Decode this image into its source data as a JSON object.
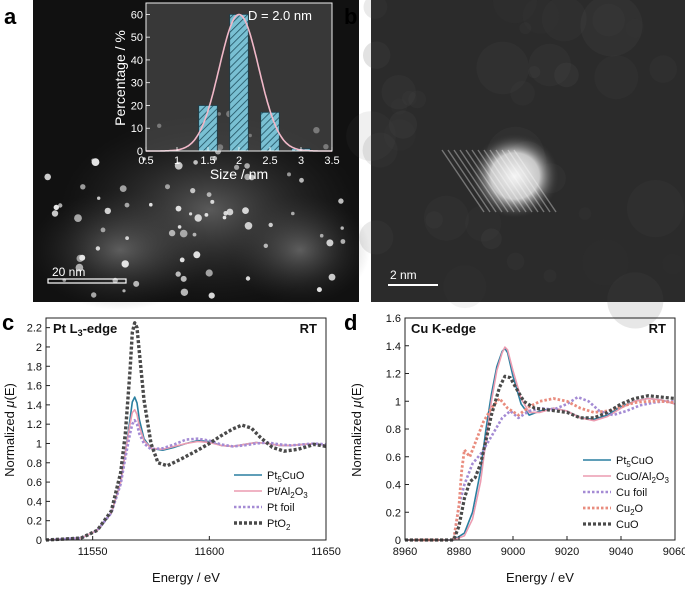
{
  "panel_labels": {
    "a": "a",
    "b": "b",
    "c": "c",
    "d": "d"
  },
  "panel_a": {
    "scale_bar": "20 nm",
    "inset": {
      "annotation": "D = 2.0 nm",
      "xlabel": "Size / nm",
      "ylabel": "Percentage / %",
      "xticks": [
        "0.5",
        "1",
        "1.5",
        "2",
        "2.5",
        "3",
        "3.5"
      ],
      "yticks": [
        "0",
        "10",
        "20",
        "30",
        "40",
        "50",
        "60"
      ]
    }
  },
  "panel_b": {
    "scale_bar": "2 nm"
  },
  "panel_c": {
    "title": "Pt L",
    "title_sub": "3",
    "title_suffix": "-edge",
    "condition": "RT",
    "xlabel": "Energy / eV",
    "ylabel_pre": "Normalized ",
    "ylabel_mu": "μ",
    "ylabel_post": "(E)",
    "xticks": [
      "11550",
      "11600",
      "11650"
    ],
    "yticks": [
      "0",
      "0.2",
      "0.4",
      "0.6",
      "0.8",
      "1",
      "1.2",
      "1.4",
      "1.6",
      "1.8",
      "2",
      "2.2"
    ],
    "legend": [
      {
        "base": "Pt",
        "sub": "5",
        "rest": "CuO"
      },
      {
        "base": "Pt/Al",
        "sub": "2",
        "rest": "O",
        "sub2": "3"
      },
      {
        "base": "Pt foil",
        "sub": "",
        "rest": ""
      },
      {
        "base": "PtO",
        "sub": "2",
        "rest": ""
      }
    ]
  },
  "panel_d": {
    "title": "Cu K-edge",
    "condition": "RT",
    "xlabel": "Energy / eV",
    "ylabel_pre": "Normalized ",
    "ylabel_mu": "μ",
    "ylabel_post": "(E)",
    "xticks": [
      "8960",
      "8980",
      "9000",
      "9020",
      "9040",
      "9060"
    ],
    "yticks": [
      "0",
      "0.2",
      "0.4",
      "0.6",
      "0.8",
      "1",
      "1.2",
      "1.4",
      "1.6"
    ],
    "legend": [
      {
        "base": "Pt",
        "sub": "5",
        "rest": "CuO"
      },
      {
        "base": "CuO/Al",
        "sub": "2",
        "rest": "O",
        "sub2": "3"
      },
      {
        "base": "Cu foil",
        "sub": "",
        "rest": ""
      },
      {
        "base": "Cu",
        "sub": "2",
        "rest": "O"
      },
      {
        "base": "CuO",
        "sub": "",
        "rest": ""
      }
    ]
  },
  "chart_data": [
    {
      "type": "bar",
      "panel": "a-inset",
      "categories": [
        "1.5",
        "2",
        "2.5",
        "3"
      ],
      "values": [
        20,
        60,
        17,
        1
      ],
      "xlabel": "Size / nm",
      "ylabel": "Percentage / %",
      "xlim": [
        0.5,
        3.5
      ],
      "ylim": [
        0,
        65
      ],
      "fit": {
        "type": "gaussian",
        "mean": 2.0,
        "peak": 60,
        "sigma": 0.32
      }
    },
    {
      "type": "line",
      "panel": "c",
      "xlabel": "Energy / eV",
      "ylabel": "Normalized μ(E)",
      "xlim": [
        11530,
        11650
      ],
      "ylim": [
        0,
        2.3
      ],
      "series": [
        {
          "name": "Pt5CuO",
          "color": "#2a7fa0",
          "x": [
            11530,
            11545,
            11552,
            11558,
            11562,
            11564,
            11566,
            11567,
            11568,
            11569,
            11570,
            11572,
            11575,
            11580,
            11585,
            11590,
            11595,
            11600,
            11605,
            11610,
            11615,
            11620,
            11625,
            11630,
            11635,
            11640,
            11645,
            11650
          ],
          "y": [
            0,
            0.02,
            0.1,
            0.28,
            0.6,
            0.9,
            1.25,
            1.43,
            1.48,
            1.42,
            1.25,
            1.05,
            0.95,
            0.93,
            0.96,
            1.0,
            1.03,
            1.02,
            0.98,
            0.97,
            0.99,
            1.01,
            1.0,
            0.98,
            0.98,
            0.99,
            1.0,
            0.98
          ]
        },
        {
          "name": "Pt/Al2O3",
          "color": "#ec9cb1",
          "x": [
            11530,
            11545,
            11552,
            11558,
            11562,
            11564,
            11566,
            11567,
            11568,
            11569,
            11570,
            11572,
            11575,
            11580,
            11585,
            11590,
            11595,
            11600,
            11605,
            11610,
            11615,
            11620,
            11625,
            11630,
            11635,
            11640,
            11645,
            11650
          ],
          "y": [
            0,
            0.02,
            0.1,
            0.28,
            0.6,
            0.9,
            1.2,
            1.32,
            1.35,
            1.3,
            1.18,
            1.03,
            0.95,
            0.94,
            0.97,
            1.0,
            1.02,
            1.01,
            0.98,
            0.97,
            0.99,
            1.01,
            1.0,
            0.98,
            0.98,
            0.99,
            1.0,
            0.98
          ]
        },
        {
          "name": "Pt foil",
          "color": "#a48bd4",
          "x": [
            11530,
            11545,
            11552,
            11558,
            11562,
            11564,
            11566,
            11567,
            11568,
            11569,
            11570,
            11572,
            11575,
            11580,
            11585,
            11590,
            11595,
            11600,
            11605,
            11610,
            11615,
            11620,
            11625,
            11630,
            11635,
            11640,
            11645,
            11650
          ],
          "y": [
            0,
            0.02,
            0.1,
            0.28,
            0.58,
            0.85,
            1.1,
            1.2,
            1.24,
            1.2,
            1.1,
            1.0,
            0.94,
            0.95,
            0.99,
            1.04,
            1.05,
            1.03,
            0.99,
            0.97,
            0.98,
            1.0,
            1.01,
            0.99,
            0.98,
            0.99,
            1.0,
            0.99
          ]
        },
        {
          "name": "PtO2",
          "color": "#4a4a4a",
          "x": [
            11530,
            11545,
            11552,
            11558,
            11562,
            11564,
            11566,
            11567,
            11568,
            11569,
            11570,
            11572,
            11575,
            11578,
            11582,
            11588,
            11595,
            11600,
            11605,
            11610,
            11614,
            11618,
            11622,
            11627,
            11632,
            11638,
            11645,
            11650
          ],
          "y": [
            0,
            0.02,
            0.1,
            0.3,
            0.7,
            1.1,
            1.75,
            2.15,
            2.25,
            2.2,
            1.95,
            1.45,
            1.0,
            0.8,
            0.77,
            0.84,
            0.93,
            1.0,
            1.08,
            1.15,
            1.19,
            1.16,
            1.06,
            0.96,
            0.92,
            0.94,
            0.99,
            0.97
          ]
        }
      ]
    },
    {
      "type": "line",
      "panel": "d",
      "xlabel": "Energy / eV",
      "ylabel": "Normalized μ(E)",
      "xlim": [
        8960,
        9060
      ],
      "ylim": [
        0,
        1.6
      ],
      "series": [
        {
          "name": "Pt5CuO",
          "color": "#2a7fa0",
          "x": [
            8960,
            8978,
            8982,
            8985,
            8988,
            8990,
            8992,
            8994,
            8996,
            8997,
            8998,
            9000,
            9003,
            9006,
            9010,
            9015,
            9020,
            9025,
            9030,
            9035,
            9040,
            9045,
            9050,
            9055,
            9060
          ],
          "y": [
            0,
            0,
            0.05,
            0.2,
            0.5,
            0.8,
            1.05,
            1.25,
            1.36,
            1.38,
            1.35,
            1.18,
            0.98,
            0.9,
            0.93,
            0.95,
            0.93,
            0.88,
            0.87,
            0.9,
            0.96,
            1.0,
            1.02,
            1.01,
            0.98
          ]
        },
        {
          "name": "CuO/Al2O3",
          "color": "#ec9cb1",
          "x": [
            8960,
            8978,
            8982,
            8985,
            8988,
            8990,
            8992,
            8994,
            8996,
            8997,
            8998,
            9000,
            9003,
            9006,
            9010,
            9015,
            9020,
            9025,
            9030,
            9035,
            9040,
            9045,
            9050,
            9055,
            9060
          ],
          "y": [
            0,
            0,
            0.03,
            0.15,
            0.42,
            0.72,
            1.0,
            1.22,
            1.35,
            1.39,
            1.37,
            1.22,
            1.02,
            0.92,
            0.92,
            0.95,
            0.93,
            0.88,
            0.86,
            0.89,
            0.95,
            1.0,
            1.02,
            1.01,
            0.98
          ]
        },
        {
          "name": "Cu foil",
          "color": "#a48bd4",
          "x": [
            8960,
            8978,
            8980,
            8982,
            8985,
            8988,
            8990,
            8993,
            8996,
            8999,
            9002,
            9006,
            9010,
            9015,
            9020,
            9024,
            9028,
            9032,
            9037,
            9042,
            9047,
            9052,
            9056,
            9060
          ],
          "y": [
            0,
            0,
            0.25,
            0.4,
            0.55,
            0.62,
            0.68,
            0.78,
            0.88,
            0.93,
            0.88,
            0.93,
            0.95,
            0.94,
            0.98,
            1.03,
            1.0,
            0.93,
            0.9,
            0.93,
            0.97,
            0.99,
            1.0,
            1.0
          ]
        },
        {
          "name": "Cu2O",
          "color": "#e98c7e",
          "x": [
            8960,
            8978,
            8980,
            8981,
            8982,
            8984,
            8986,
            8989,
            8992,
            8995,
            8998,
            9002,
            9006,
            9010,
            9015,
            9020,
            9025,
            9030,
            9035,
            9040,
            9045,
            9050,
            9055,
            9060
          ],
          "y": [
            0,
            0,
            0.25,
            0.5,
            0.65,
            0.6,
            0.7,
            0.85,
            0.95,
            1.02,
            0.95,
            0.9,
            0.96,
            1.0,
            1.02,
            1.0,
            0.95,
            0.92,
            0.93,
            0.96,
            0.99,
            1.0,
            1.0,
            0.99
          ]
        },
        {
          "name": "CuO",
          "color": "#4a4a4a",
          "x": [
            8960,
            8978,
            8980,
            8982,
            8984,
            8986,
            8988,
            8990,
            8992,
            8995,
            8997,
            8999,
            9001,
            9004,
            9008,
            9012,
            9016,
            9020,
            9025,
            9030,
            9035,
            9040,
            9045,
            9050,
            9055,
            9060
          ],
          "y": [
            0,
            0,
            0.1,
            0.3,
            0.42,
            0.45,
            0.55,
            0.72,
            0.9,
            1.1,
            1.18,
            1.17,
            1.1,
            1.0,
            0.95,
            0.94,
            0.93,
            0.92,
            0.88,
            0.88,
            0.92,
            0.98,
            1.02,
            1.04,
            1.03,
            1.02
          ]
        }
      ]
    }
  ]
}
